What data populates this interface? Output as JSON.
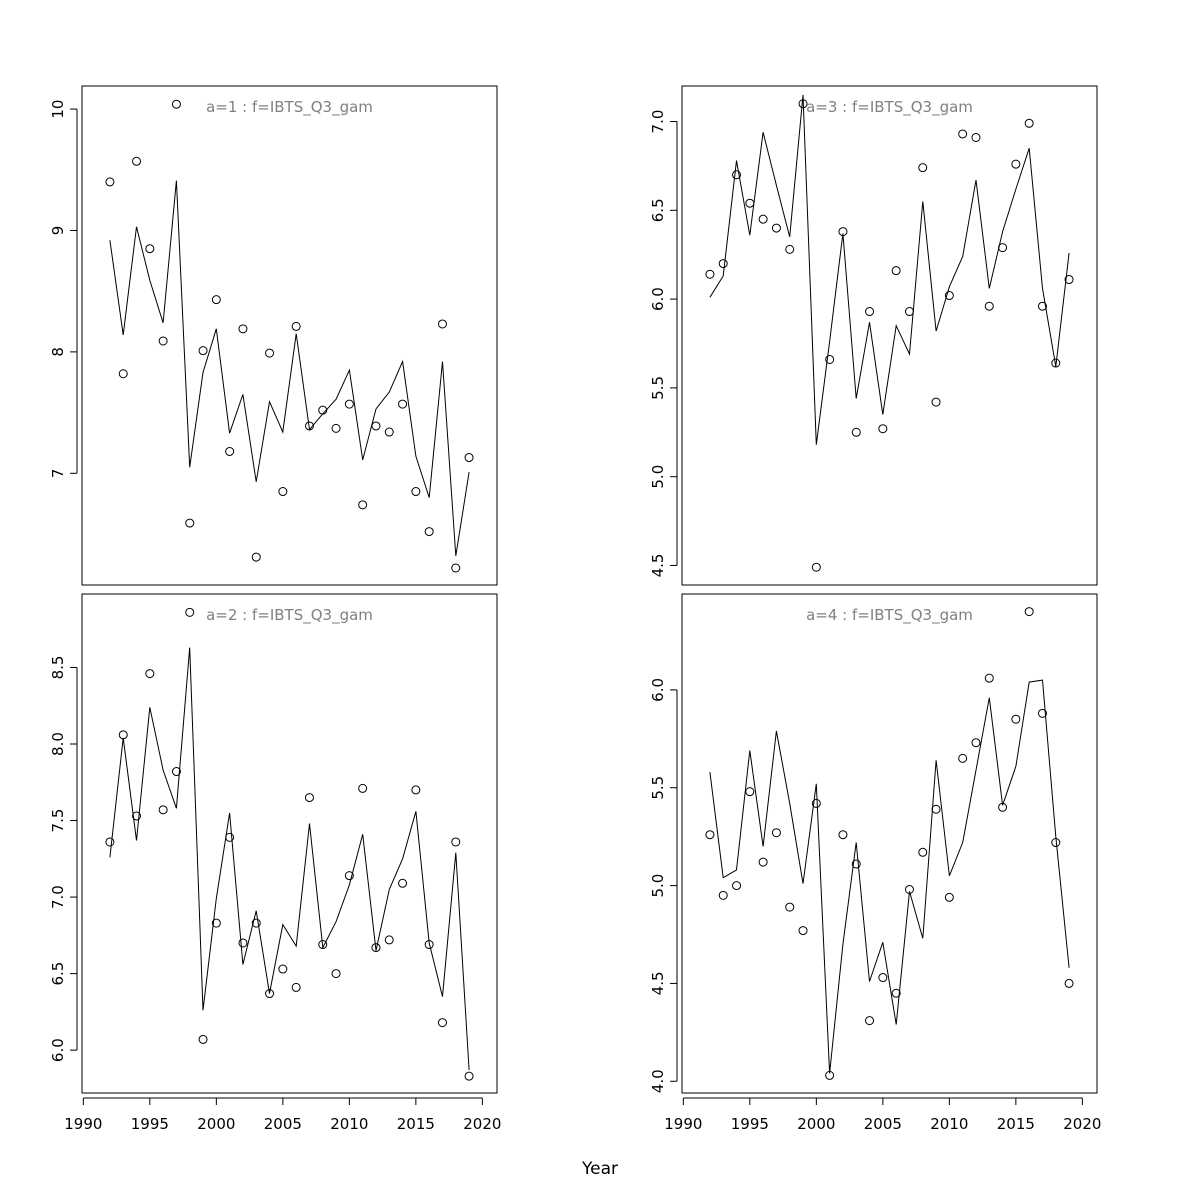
{
  "chart_data": {
    "type": "line",
    "xlabel": "Year",
    "x": [
      1992,
      1993,
      1994,
      1995,
      1996,
      1997,
      1998,
      1999,
      2000,
      2001,
      2002,
      2003,
      2004,
      2005,
      2006,
      2007,
      2008,
      2009,
      2010,
      2011,
      2012,
      2013,
      2014,
      2015,
      2016,
      2017,
      2018,
      2019
    ],
    "xlim": [
      1989.9,
      2021.1
    ],
    "xticks": [
      "1990",
      "1995",
      "2000",
      "2005",
      "2010",
      "2015",
      "2020"
    ],
    "panels": [
      {
        "title": "a=1  :  f=IBTS_Q3_gam",
        "position": "top-left",
        "ylim": [
          6.08,
          10.19
        ],
        "yticks": [
          "7",
          "8",
          "9",
          "10"
        ],
        "observed": [
          9.4,
          7.82,
          9.57,
          8.85,
          8.09,
          10.04,
          6.59,
          8.01,
          8.43,
          7.18,
          8.19,
          6.31,
          7.99,
          6.85,
          8.21,
          7.39,
          7.52,
          7.37,
          7.57,
          6.74,
          7.39,
          7.34,
          7.57,
          6.85,
          6.52,
          8.23,
          6.22,
          7.13
        ],
        "fitted": [
          8.92,
          8.14,
          9.03,
          8.59,
          8.24,
          9.41,
          7.05,
          7.83,
          8.19,
          7.33,
          7.65,
          6.93,
          7.59,
          7.34,
          8.15,
          7.36,
          7.49,
          7.61,
          7.85,
          7.11,
          7.53,
          7.67,
          7.92,
          7.14,
          6.8,
          7.92,
          6.32,
          7.01
        ]
      },
      {
        "title": "a=3  :  f=IBTS_Q3_gam",
        "position": "top-right",
        "ylim": [
          4.39,
          7.2
        ],
        "yticks": [
          "4.5",
          "5.0",
          "5.5",
          "6.0",
          "6.5",
          "7.0"
        ],
        "observed": [
          6.14,
          6.2,
          6.7,
          6.54,
          6.45,
          6.4,
          6.28,
          7.1,
          4.49,
          5.66,
          6.38,
          5.25,
          5.93,
          5.27,
          6.16,
          5.93,
          6.74,
          5.42,
          6.02,
          6.93,
          6.91,
          5.96,
          6.29,
          6.76,
          6.99,
          5.96,
          5.64,
          6.11
        ],
        "fitted": [
          6.01,
          6.13,
          6.78,
          6.36,
          6.94,
          6.64,
          6.35,
          7.15,
          5.18,
          5.76,
          6.37,
          5.44,
          5.87,
          5.35,
          5.85,
          5.69,
          6.55,
          5.82,
          6.07,
          6.24,
          6.67,
          6.06,
          6.38,
          6.62,
          6.85,
          6.06,
          5.62,
          6.26
        ]
      },
      {
        "title": "a=2  :  f=IBTS_Q3_gam",
        "position": "bottom-left",
        "ylim": [
          5.72,
          8.98
        ],
        "yticks": [
          "6.0",
          "6.5",
          "7.0",
          "7.5",
          "8.0",
          "8.5"
        ],
        "observed": [
          7.36,
          8.06,
          7.53,
          8.46,
          7.57,
          7.82,
          8.86,
          6.07,
          6.83,
          7.39,
          6.7,
          6.83,
          6.37,
          6.53,
          6.41,
          7.65,
          6.69,
          6.5,
          7.14,
          7.71,
          6.67,
          6.72,
          7.09,
          7.7,
          6.69,
          6.18,
          7.36,
          5.83
        ],
        "fitted": [
          7.26,
          8.04,
          7.37,
          8.24,
          7.83,
          7.58,
          8.63,
          6.26,
          6.99,
          7.55,
          6.56,
          6.91,
          6.37,
          6.82,
          6.68,
          7.48,
          6.67,
          6.84,
          7.08,
          7.41,
          6.65,
          7.05,
          7.25,
          7.56,
          6.7,
          6.35,
          7.29,
          5.87
        ]
      },
      {
        "title": "a=4  :  f=IBTS_Q3_gam",
        "position": "bottom-right",
        "ylim": [
          3.94,
          6.49
        ],
        "yticks": [
          "4.0",
          "4.5",
          "5.0",
          "5.5",
          "6.0"
        ],
        "observed": [
          5.26,
          4.95,
          5.0,
          5.48,
          5.12,
          5.27,
          4.89,
          4.77,
          5.42,
          4.03,
          5.26,
          5.11,
          4.31,
          4.53,
          4.45,
          4.98,
          5.17,
          5.39,
          4.94,
          5.65,
          5.73,
          6.06,
          5.4,
          5.85,
          6.4,
          5.88,
          5.22,
          4.5
        ],
        "fitted": [
          5.58,
          5.04,
          5.08,
          5.69,
          5.2,
          5.79,
          5.42,
          5.01,
          5.52,
          4.04,
          4.7,
          5.22,
          4.51,
          4.71,
          4.29,
          4.97,
          4.73,
          5.64,
          5.05,
          5.22,
          5.59,
          5.96,
          5.41,
          5.61,
          6.04,
          6.05,
          5.25,
          4.58
        ]
      }
    ]
  }
}
